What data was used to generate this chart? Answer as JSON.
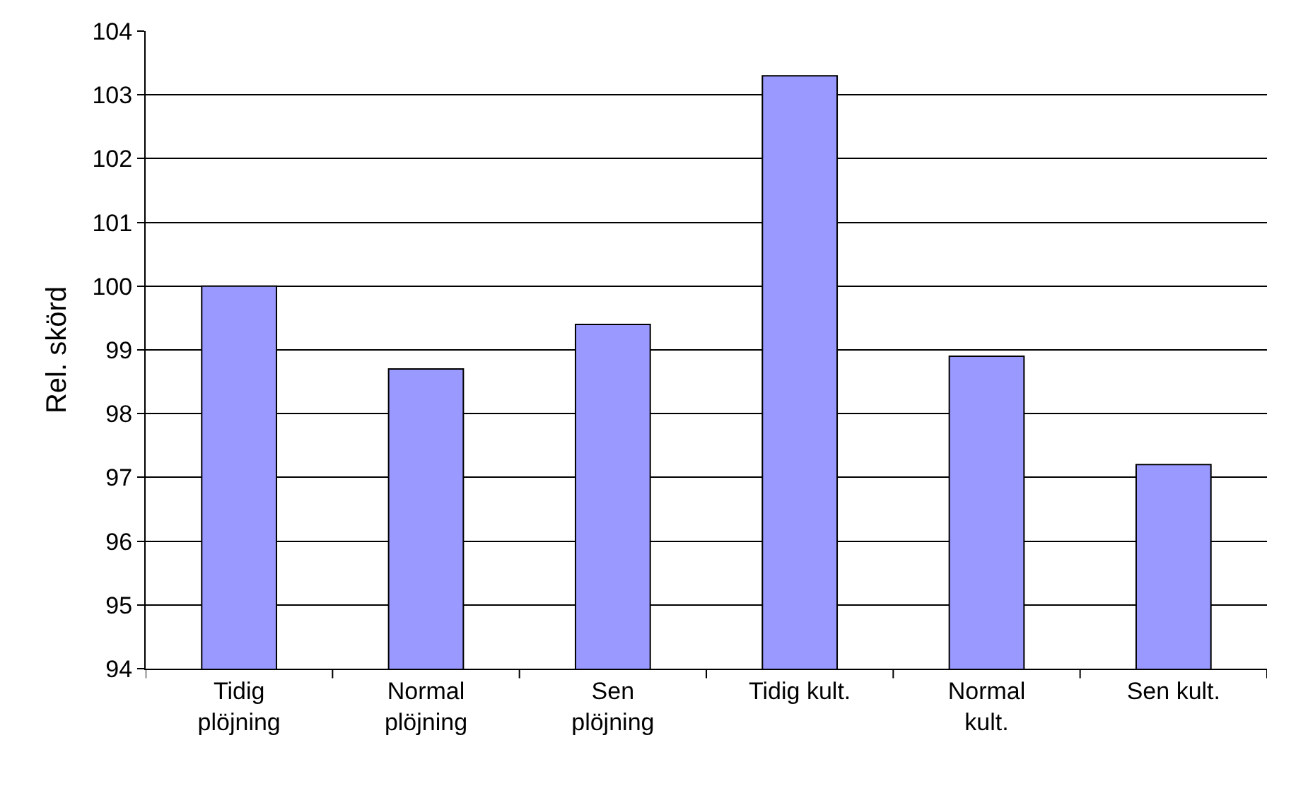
{
  "chart_data": {
    "type": "bar",
    "ylabel": "Rel. skörd",
    "categories": [
      "Tidig\nplöjning",
      "Normal\nplöjning",
      "Sen\nplöjning",
      "Tidig kult.",
      "Normal\nkult.",
      "Sen kult."
    ],
    "series": [
      {
        "color": "#9999ff",
        "values": [
          100.0,
          98.7,
          99.4,
          103.3,
          98.9,
          97.2
        ]
      }
    ],
    "ylim": [
      94,
      104
    ],
    "yticks": [
      94,
      95,
      96,
      97,
      98,
      99,
      100,
      101,
      102,
      103,
      104
    ],
    "grid": "y"
  }
}
